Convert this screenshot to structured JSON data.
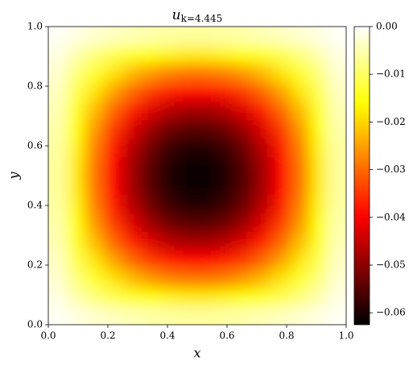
{
  "chart_data": {
    "type": "heatmap",
    "title": "u",
    "title_subscript": "k=4.445",
    "x_label": "x",
    "y_label": "y",
    "xlim": [
      0,
      1
    ],
    "ylim": [
      0,
      1
    ],
    "xticks": [
      {
        "value": 0,
        "label": "0.0"
      },
      {
        "value": 0.2,
        "label": "0.2"
      },
      {
        "value": 0.4,
        "label": "0.4"
      },
      {
        "value": 0.6,
        "label": "0.6"
      },
      {
        "value": 0.8,
        "label": "0.8"
      },
      {
        "value": 1,
        "label": "1.0"
      }
    ],
    "yticks": [
      {
        "value": 0,
        "label": "0.0"
      },
      {
        "value": 0.2,
        "label": "0.2"
      },
      {
        "value": 0.4,
        "label": "0.4"
      },
      {
        "value": 0.6,
        "label": "0.6"
      },
      {
        "value": 0.8,
        "label": "0.8"
      },
      {
        "value": 1,
        "label": "1.0"
      }
    ],
    "colormap": "hot",
    "zlim": [
      -0.0625,
      0
    ],
    "colorbar_ticks": [
      {
        "value": 0,
        "label": "0.00"
      },
      {
        "value": -0.01,
        "label": "−0.01"
      },
      {
        "value": -0.02,
        "label": "−0.02"
      },
      {
        "value": -0.03,
        "label": "−0.03"
      },
      {
        "value": -0.04,
        "label": "−0.04"
      },
      {
        "value": -0.05,
        "label": "−0.05"
      },
      {
        "value": -0.06,
        "label": "−0.06"
      }
    ],
    "z": [
      [
        -0.0006,
        -0.0018,
        -0.0029,
        -0.0039,
        -0.0047,
        -0.0054,
        -0.0059,
        -0.0061,
        -0.0061,
        -0.0059,
        -0.0054,
        -0.0047,
        -0.0039,
        -0.0029,
        -0.0018,
        -0.0006
      ],
      [
        -0.0018,
        -0.0053,
        -0.0085,
        -0.0115,
        -0.014,
        -0.016,
        -0.0173,
        -0.018,
        -0.018,
        -0.0173,
        -0.016,
        -0.014,
        -0.0115,
        -0.0085,
        -0.0053,
        -0.0018
      ],
      [
        -0.0029,
        -0.0085,
        -0.0139,
        -0.0187,
        -0.0228,
        -0.026,
        -0.0282,
        -0.0293,
        -0.0293,
        -0.0282,
        -0.026,
        -0.0228,
        -0.0187,
        -0.0139,
        -0.0085,
        -0.0029
      ],
      [
        -0.0039,
        -0.0115,
        -0.0187,
        -0.0251,
        -0.0306,
        -0.0349,
        -0.0379,
        -0.0394,
        -0.0394,
        -0.0379,
        -0.0349,
        -0.0306,
        -0.0251,
        -0.0187,
        -0.0115,
        -0.0039
      ],
      [
        -0.0047,
        -0.014,
        -0.0228,
        -0.0306,
        -0.0373,
        -0.0426,
        -0.0462,
        -0.0481,
        -0.0481,
        -0.0462,
        -0.0426,
        -0.0373,
        -0.0306,
        -0.0228,
        -0.014,
        -0.0047
      ],
      [
        -0.0054,
        -0.016,
        -0.026,
        -0.0349,
        -0.0426,
        -0.0486,
        -0.0528,
        -0.0548,
        -0.0548,
        -0.0528,
        -0.0486,
        -0.0426,
        -0.0349,
        -0.026,
        -0.016,
        -0.0054
      ],
      [
        -0.0059,
        -0.0173,
        -0.0282,
        -0.0379,
        -0.0462,
        -0.0528,
        -0.0572,
        -0.0595,
        -0.0595,
        -0.0572,
        -0.0528,
        -0.0462,
        -0.0379,
        -0.0282,
        -0.0173,
        -0.0059
      ],
      [
        -0.0061,
        -0.018,
        -0.0293,
        -0.0394,
        -0.0481,
        -0.0548,
        -0.0595,
        -0.0619,
        -0.0619,
        -0.0595,
        -0.0548,
        -0.0481,
        -0.0394,
        -0.0293,
        -0.018,
        -0.0061
      ],
      [
        -0.0061,
        -0.018,
        -0.0293,
        -0.0394,
        -0.0481,
        -0.0548,
        -0.0595,
        -0.0619,
        -0.0619,
        -0.0595,
        -0.0548,
        -0.0481,
        -0.0394,
        -0.0293,
        -0.018,
        -0.0061
      ],
      [
        -0.0059,
        -0.0173,
        -0.0282,
        -0.0379,
        -0.0462,
        -0.0528,
        -0.0572,
        -0.0595,
        -0.0595,
        -0.0572,
        -0.0528,
        -0.0462,
        -0.0379,
        -0.0282,
        -0.0173,
        -0.0059
      ],
      [
        -0.0054,
        -0.016,
        -0.026,
        -0.0349,
        -0.0426,
        -0.0486,
        -0.0528,
        -0.0548,
        -0.0548,
        -0.0528,
        -0.0486,
        -0.0426,
        -0.0349,
        -0.026,
        -0.016,
        -0.0054
      ],
      [
        -0.0047,
        -0.014,
        -0.0228,
        -0.0306,
        -0.0373,
        -0.0426,
        -0.0462,
        -0.0481,
        -0.0481,
        -0.0462,
        -0.0426,
        -0.0373,
        -0.0306,
        -0.0228,
        -0.014,
        -0.0047
      ],
      [
        -0.0039,
        -0.0115,
        -0.0187,
        -0.0251,
        -0.0306,
        -0.0349,
        -0.0379,
        -0.0394,
        -0.0394,
        -0.0379,
        -0.0349,
        -0.0306,
        -0.0251,
        -0.0187,
        -0.0115,
        -0.0039
      ],
      [
        -0.0029,
        -0.0085,
        -0.0139,
        -0.0187,
        -0.0228,
        -0.026,
        -0.0282,
        -0.0293,
        -0.0293,
        -0.0282,
        -0.026,
        -0.0228,
        -0.0187,
        -0.0139,
        -0.0085,
        -0.0029
      ],
      [
        -0.0018,
        -0.0053,
        -0.0085,
        -0.0115,
        -0.014,
        -0.016,
        -0.0173,
        -0.018,
        -0.018,
        -0.0173,
        -0.016,
        -0.014,
        -0.0115,
        -0.0085,
        -0.0053,
        -0.0018
      ],
      [
        -0.0006,
        -0.0018,
        -0.0029,
        -0.0039,
        -0.0047,
        -0.0054,
        -0.0059,
        -0.0061,
        -0.0061,
        -0.0059,
        -0.0054,
        -0.0047,
        -0.0039,
        -0.0029,
        -0.0018,
        -0.0006
      ]
    ]
  }
}
